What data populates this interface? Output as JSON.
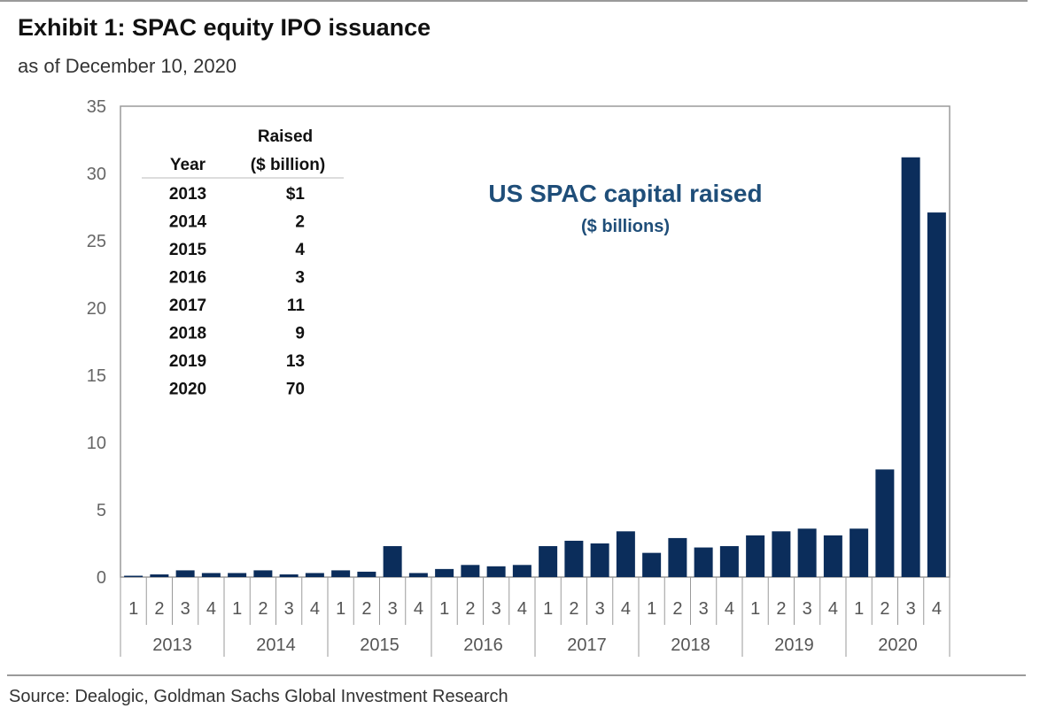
{
  "header": {
    "title": "Exhibit 1: SPAC equity IPO issuance",
    "subtitle": "as of December 10, 2020"
  },
  "footer": {
    "source": "Source: Dealogic, Goldman Sachs Global Investment Research"
  },
  "colors": {
    "bar": "#0b2d5b",
    "annotation": "#1f4e79",
    "axis": "#9a9a9a"
  },
  "chart_data": {
    "type": "bar",
    "title": "",
    "xlabel": "",
    "ylabel": "",
    "ylim": [
      0,
      35
    ],
    "yticks": [
      "0",
      "5",
      "10",
      "15",
      "20",
      "25",
      "30",
      "35"
    ],
    "grid": false,
    "annotation": {
      "title": "US SPAC capital raised",
      "subtitle": "($ billions)"
    },
    "years": [
      "2013",
      "2014",
      "2015",
      "2016",
      "2017",
      "2018",
      "2019",
      "2020"
    ],
    "quarter_labels": [
      "1",
      "2",
      "3",
      "4"
    ],
    "categories": [
      "2013 Q1",
      "2013 Q2",
      "2013 Q3",
      "2013 Q4",
      "2014 Q1",
      "2014 Q2",
      "2014 Q3",
      "2014 Q4",
      "2015 Q1",
      "2015 Q2",
      "2015 Q3",
      "2015 Q4",
      "2016 Q1",
      "2016 Q2",
      "2016 Q3",
      "2016 Q4",
      "2017 Q1",
      "2017 Q2",
      "2017 Q3",
      "2017 Q4",
      "2018 Q1",
      "2018 Q2",
      "2018 Q3",
      "2018 Q4",
      "2019 Q1",
      "2019 Q2",
      "2019 Q3",
      "2019 Q4",
      "2020 Q1",
      "2020 Q2",
      "2020 Q3",
      "2020 Q4"
    ],
    "values": [
      0.1,
      0.2,
      0.5,
      0.3,
      0.3,
      0.5,
      0.2,
      0.3,
      0.5,
      0.4,
      2.3,
      0.3,
      0.6,
      0.9,
      0.8,
      0.9,
      2.3,
      2.7,
      2.5,
      3.4,
      1.8,
      2.9,
      2.2,
      2.3,
      3.1,
      3.4,
      3.6,
      3.1,
      3.6,
      8.0,
      31.2,
      27.1
    ],
    "inset_table": {
      "headers": [
        "Year",
        "Raised",
        "($ billion)"
      ],
      "rows": [
        {
          "year": "2013",
          "raised": "$1"
        },
        {
          "year": "2014",
          "raised": "2"
        },
        {
          "year": "2015",
          "raised": "4"
        },
        {
          "year": "2016",
          "raised": "3"
        },
        {
          "year": "2017",
          "raised": "11"
        },
        {
          "year": "2018",
          "raised": "9"
        },
        {
          "year": "2019",
          "raised": "13"
        },
        {
          "year": "2020",
          "raised": "70"
        }
      ]
    }
  }
}
